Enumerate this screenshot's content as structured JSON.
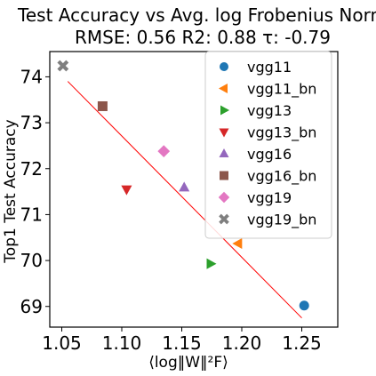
{
  "chart_data": {
    "type": "scatter",
    "title": "Test Accuracy vs Avg. log Frobenius Norm",
    "subtitle": "RMSE: 0.56 R2: 0.88 τ: -0.79",
    "xlabel": "⟨log‖W‖²F⟩",
    "ylabel": "Top1 Test Accuracy",
    "xlim": [
      1.04,
      1.28
    ],
    "ylim": [
      68.55,
      74.55
    ],
    "xticks": [
      1.05,
      1.1,
      1.15,
      1.2,
      1.25
    ],
    "xtick_labels": [
      "1.05",
      "1.10",
      "1.15",
      "1.20",
      "1.25"
    ],
    "yticks": [
      69,
      70,
      71,
      72,
      73,
      74
    ],
    "ytick_labels": [
      "69",
      "70",
      "71",
      "72",
      "73",
      "74"
    ],
    "grid": false,
    "legend_position": "right",
    "fit_line": {
      "color": "#ff0000",
      "x": [
        1.055,
        1.25
      ],
      "y": [
        73.9,
        68.75
      ]
    },
    "series": [
      {
        "name": "vgg11",
        "marker": "circle",
        "color": "#1f77b4",
        "x": 1.252,
        "y": 69.02
      },
      {
        "name": "vgg11_bn",
        "marker": "triangle-left",
        "color": "#ff7f0e",
        "x": 1.197,
        "y": 70.37
      },
      {
        "name": "vgg13",
        "marker": "triangle-right",
        "color": "#2ca02c",
        "x": 1.174,
        "y": 69.93
      },
      {
        "name": "vgg13_bn",
        "marker": "triangle-down",
        "color": "#d62728",
        "x": 1.104,
        "y": 71.55
      },
      {
        "name": "vgg16",
        "marker": "triangle-up",
        "color": "#9467bd",
        "x": 1.152,
        "y": 71.59
      },
      {
        "name": "vgg16_bn",
        "marker": "square",
        "color": "#8c564b",
        "x": 1.084,
        "y": 73.36
      },
      {
        "name": "vgg19",
        "marker": "diamond",
        "color": "#e377c2",
        "x": 1.135,
        "y": 72.38
      },
      {
        "name": "vgg19_bn",
        "marker": "x",
        "color": "#7f7f7f",
        "x": 1.051,
        "y": 74.24
      }
    ]
  }
}
